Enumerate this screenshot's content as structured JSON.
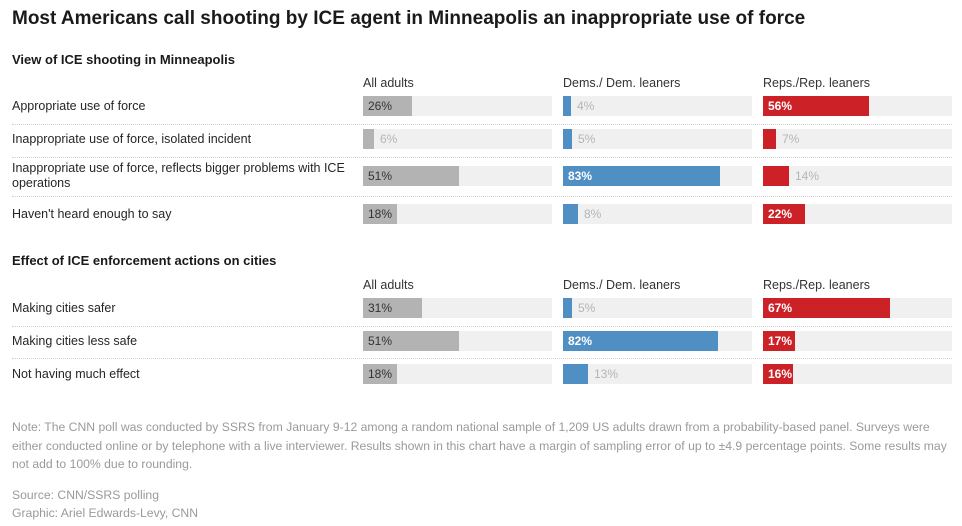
{
  "title": "Most Americans call shooting by ICE agent in Minneapolis an inappropriate use of force",
  "colors": {
    "all": "#b3b3b3",
    "dem": "#4f8fc4",
    "rep": "#cc2127",
    "track": "#f0f0f0"
  },
  "chart_data": [
    {
      "type": "bar",
      "orientation": "horizontal",
      "title": "View of ICE shooting in Minneapolis",
      "xlim": [
        0,
        100
      ],
      "unit": "%",
      "categories": [
        "Appropriate use of force",
        "Inappropriate use of force, isolated incident",
        "Inappropriate use of force, reflects bigger problems with ICE operations",
        "Haven't heard enough to say"
      ],
      "series": [
        {
          "name": "All adults",
          "values": [
            26,
            6,
            51,
            18
          ]
        },
        {
          "name": "Dems./ Dem. leaners",
          "values": [
            4,
            5,
            83,
            8
          ]
        },
        {
          "name": "Reps./Rep. leaners",
          "values": [
            56,
            7,
            14,
            22
          ]
        }
      ]
    },
    {
      "type": "bar",
      "orientation": "horizontal",
      "title": "Effect of ICE enforcement actions on cities",
      "xlim": [
        0,
        100
      ],
      "unit": "%",
      "categories": [
        "Making cities safer",
        "Making cities less safe",
        "Not having much effect"
      ],
      "series": [
        {
          "name": "All adults",
          "values": [
            31,
            51,
            18
          ]
        },
        {
          "name": "Dems./ Dem. leaners",
          "values": [
            5,
            82,
            13
          ]
        },
        {
          "name": "Reps./Rep. leaners",
          "values": [
            67,
            17,
            16
          ]
        }
      ]
    }
  ],
  "note": "Note: The CNN poll was conducted by SSRS from January 9-12 among a random national sample of 1,209 US adults drawn from a probability-based panel. Surveys were either conducted online or by telephone with a live interviewer. Results shown in this chart have a margin of sampling error of up to ±4.9 percentage points. Some results may not add to 100% due to rounding.",
  "source": "Source: CNN/SSRS polling",
  "credit": "Graphic: Ariel Edwards-Levy, CNN"
}
